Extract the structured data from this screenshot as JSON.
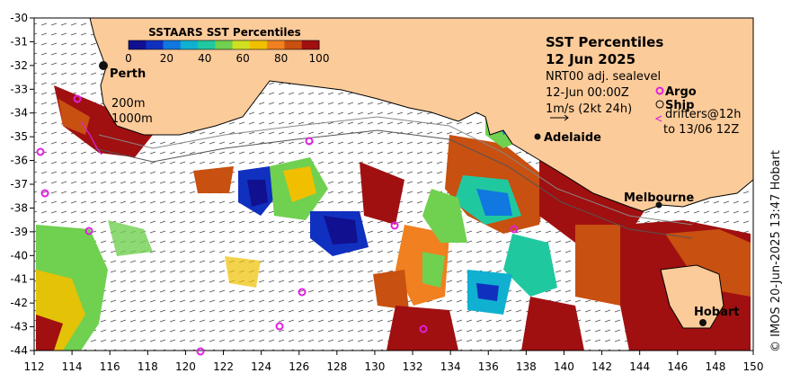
{
  "title": "SST Percentiles",
  "date": "12 Jun 2025",
  "subtitle": "NRT00 adj. sealevel",
  "time": "12-Jun 00:00Z",
  "velocity_scale": "1m/s (2kt 24h)",
  "legend": {
    "title": "SSTAARS SST Percentiles",
    "ticks": [
      "0",
      "20",
      "40",
      "60",
      "80",
      "100"
    ],
    "colors": [
      "#101090",
      "#1030c0",
      "#1078e0",
      "#10b0d0",
      "#20c8a0",
      "#70d050",
      "#d0e020",
      "#f0c000",
      "#f08020",
      "#c85010",
      "#a01010"
    ]
  },
  "markers": {
    "argo": "Argo",
    "ship": "Ship",
    "drifters": "drifters@12h",
    "drifters_to": "to 13/06 12Z"
  },
  "depth_contours": [
    "200m",
    "1000m"
  ],
  "cities": [
    "Perth",
    "Adelaide",
    "Melbourne",
    "Hobart"
  ],
  "x_ticks": [
    "112",
    "114",
    "116",
    "118",
    "120",
    "122",
    "124",
    "126",
    "128",
    "130",
    "132",
    "134",
    "136",
    "138",
    "140",
    "142",
    "144",
    "146",
    "148",
    "150"
  ],
  "y_ticks": [
    "-30",
    "-31",
    "-32",
    "-33",
    "-34",
    "-35",
    "-36",
    "-37",
    "-38",
    "-39",
    "-40",
    "-41",
    "-42",
    "-43",
    "-44"
  ],
  "credit": "© IMOS 20-Jun-2025 13:47 Hobart",
  "colors": {
    "land": "#fccb9a",
    "argo": "#e020e0",
    "very_warm": "#a01010"
  }
}
